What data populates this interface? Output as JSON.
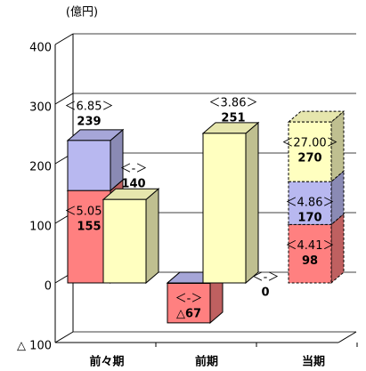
{
  "chart_data": {
    "type": "bar3d",
    "unit": "(億円)",
    "categories": [
      "前々期",
      "前期",
      "当期"
    ],
    "ylim": [
      -100,
      400
    ],
    "yticks": [
      {
        "value": -100,
        "label": "△ 100"
      },
      0,
      100,
      200,
      300,
      400
    ],
    "grid": true,
    "groups": [
      {
        "stacks": [
          {
            "segments": [
              {
                "value": 155,
                "color": "#ff8080",
                "ratio": "＜5.05＞"
              },
              {
                "value": 84,
                "color": "#b8b8f0"
              }
            ],
            "total": 239,
            "total_ratio": "＜6.85＞"
          },
          {
            "segments": [
              {
                "value": 140,
                "color": "#ffffc0",
                "ratio": "＜-＞"
              }
            ]
          }
        ]
      },
      {
        "stacks": [
          {
            "segments": [
              {
                "value": -67,
                "value_label": "△67",
                "color": "#ff8080",
                "ratio": "＜-＞"
              },
              {
                "value": 0,
                "color": "#b8b8f0",
                "ratio": "＜-＞"
              }
            ]
          },
          {
            "segments": [
              {
                "value": 251,
                "color": "#ffffc0",
                "ratio": "＜3.86＞"
              }
            ]
          }
        ]
      },
      {
        "stacks": [
          {
            "dashed": true,
            "segments": [
              {
                "value": 98,
                "color": "#ff8080",
                "ratio": "＜4.41＞"
              },
              {
                "value": 72,
                "color": "#b8b8f0",
                "label": 170,
                "ratio": "＜4.86＞"
              },
              {
                "value": 100,
                "color": "#ffffc0",
                "label": 270,
                "ratio": "＜27.00＞"
              }
            ]
          }
        ]
      }
    ]
  }
}
